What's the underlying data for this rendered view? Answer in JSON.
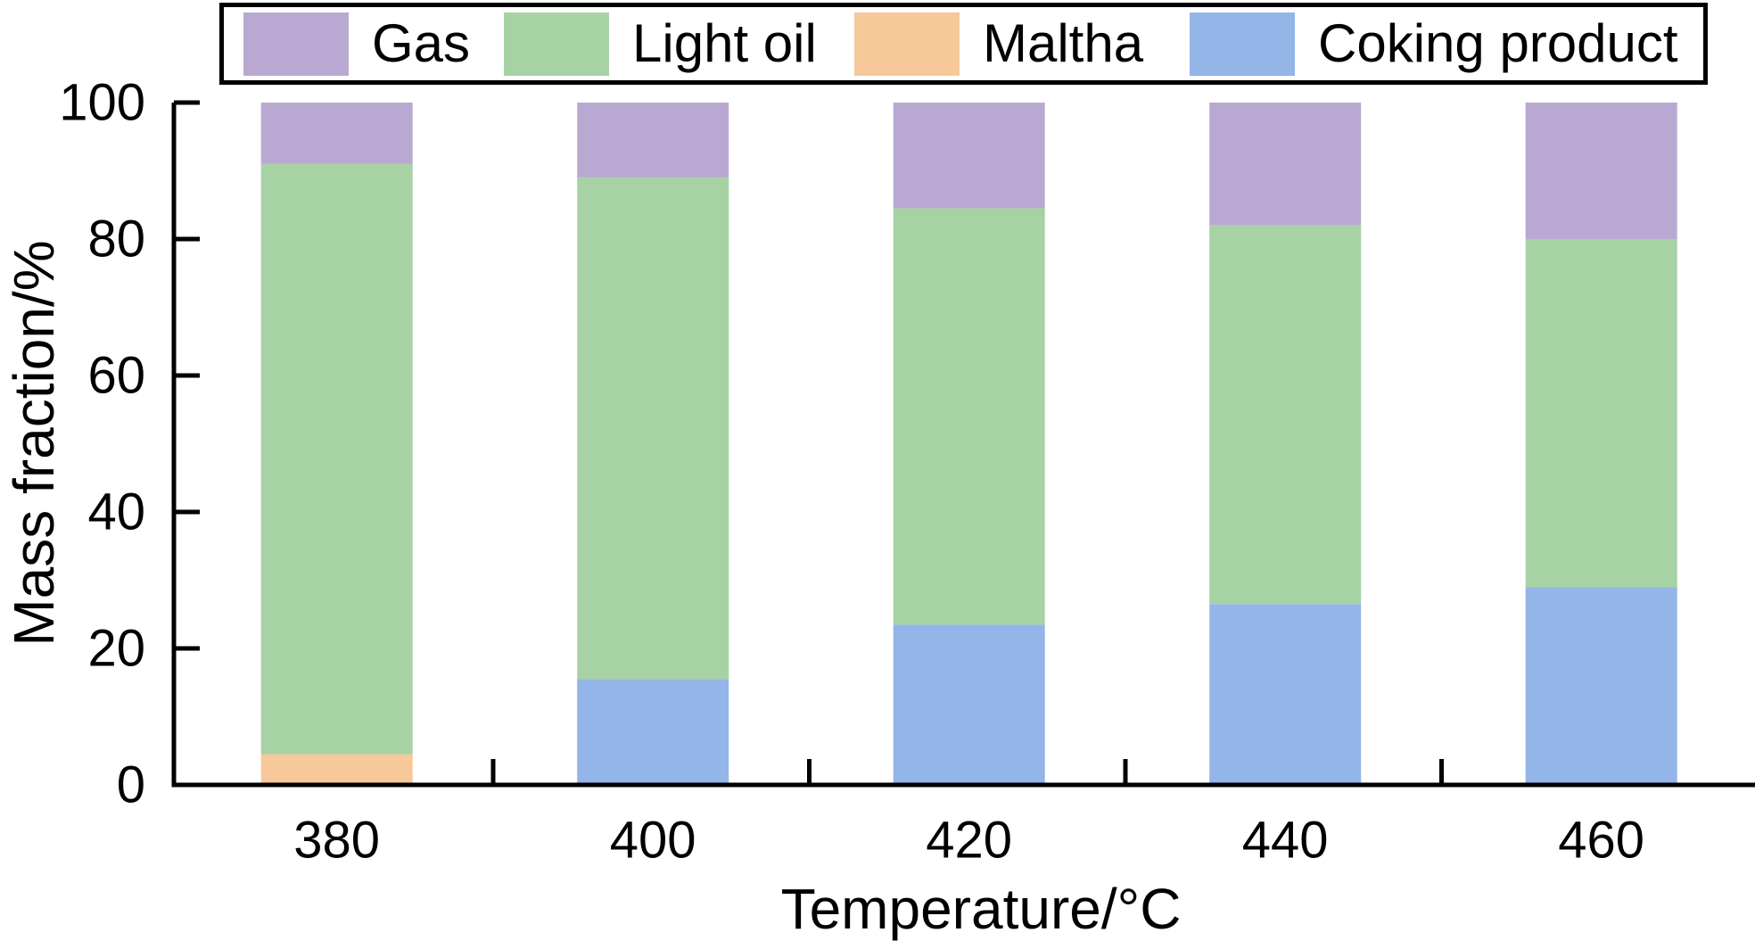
{
  "chart_data": {
    "type": "bar",
    "stacked": true,
    "title": "",
    "xlabel": "Temperature/°C",
    "ylabel": "Mass fraction/%",
    "categories": [
      "380",
      "400",
      "420",
      "440",
      "460"
    ],
    "series": [
      {
        "name": "Gas",
        "color": "#b9a9d2",
        "values": [
          9,
          11,
          15.5,
          18,
          20
        ]
      },
      {
        "name": "Light oil",
        "color": "#a6d2a4",
        "values": [
          86.5,
          73.5,
          61,
          55.5,
          51
        ]
      },
      {
        "name": "Maltha",
        "color": "#f6c89a",
        "values": [
          4.5,
          0,
          0,
          0,
          0
        ]
      },
      {
        "name": "Coking product",
        "color": "#93b5e8",
        "values": [
          0,
          15.5,
          23.5,
          26.5,
          29
        ]
      }
    ],
    "stack_order_bottom_to_top": [
      "Coking product",
      "Maltha",
      "Light oil",
      "Gas"
    ],
    "ylim": [
      0,
      100
    ],
    "yticks": [
      0,
      20,
      40,
      60,
      80,
      100
    ],
    "grid": false,
    "legend_position": "top"
  },
  "legend": {
    "entries": [
      {
        "label": "Gas"
      },
      {
        "label": "Light oil"
      },
      {
        "label": "Maltha"
      },
      {
        "label": "Coking product"
      }
    ]
  },
  "colors": {
    "axis": "#000000",
    "text": "#000000",
    "background": "#ffffff",
    "gas": "#b9a9d2",
    "light_oil": "#a6d2a4",
    "maltha": "#f6c89a",
    "coking_product": "#93b5e8"
  }
}
